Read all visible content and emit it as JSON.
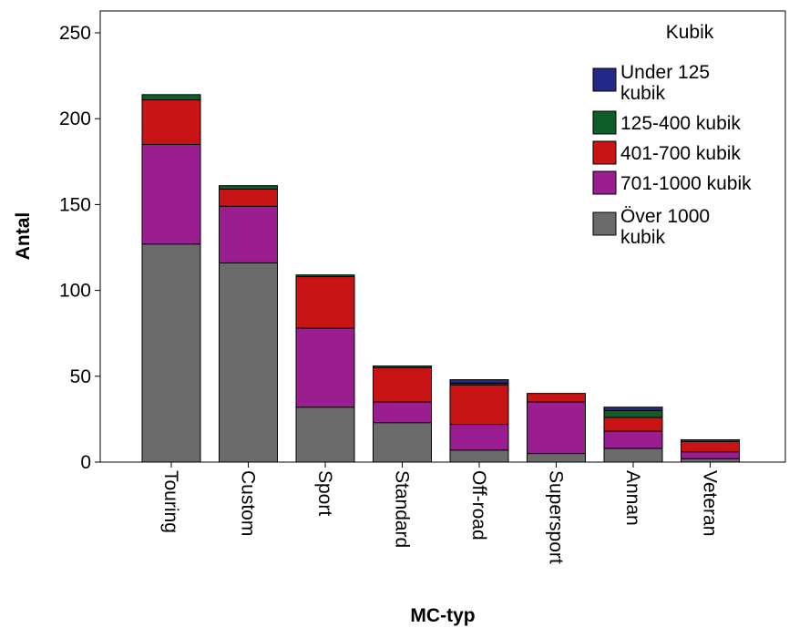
{
  "chart_data": {
    "type": "bar",
    "stacked": true,
    "title": "",
    "xlabel": "MC-typ",
    "ylabel": "Antal",
    "ylim": [
      0,
      250
    ],
    "yticks": [
      0,
      50,
      100,
      150,
      200,
      250
    ],
    "grid": false,
    "legend_title": "Kubik",
    "legend_position": "top-right",
    "categories": [
      "Touring",
      "Custom",
      "Sport",
      "Standard",
      "Off-road",
      "Supersport",
      "Annan",
      "Veteran"
    ],
    "series": [
      {
        "name": "Över 1000 kubik",
        "legend_lines": [
          "Över 1000",
          "kubik"
        ],
        "color": "#6b6b6b",
        "values": [
          127,
          116,
          32,
          23,
          7,
          5,
          8,
          2
        ]
      },
      {
        "name": "701-1000 kubik",
        "legend_lines": [
          "701-1000 kubik"
        ],
        "color": "#9b1e91",
        "values": [
          58,
          33,
          46,
          12,
          15,
          30,
          10,
          4
        ]
      },
      {
        "name": "401-700 kubik",
        "legend_lines": [
          "401-700 kubik"
        ],
        "color": "#c81414",
        "values": [
          26,
          10,
          30,
          20,
          23,
          5,
          8,
          6
        ]
      },
      {
        "name": "125-400 kubik",
        "legend_lines": [
          "125-400 kubik"
        ],
        "color": "#0f5e2a",
        "values": [
          3,
          2,
          1,
          1,
          1,
          0,
          4,
          1
        ]
      },
      {
        "name": "Under 125 kubik",
        "legend_lines": [
          "Under 125",
          "kubik"
        ],
        "color": "#232a85",
        "values": [
          0,
          0,
          0,
          0,
          2,
          0,
          2,
          0
        ]
      }
    ],
    "legend_order": [
      "Under 125 kubik",
      "125-400 kubik",
      "401-700 kubik",
      "701-1000 kubik",
      "Över 1000 kubik"
    ]
  }
}
